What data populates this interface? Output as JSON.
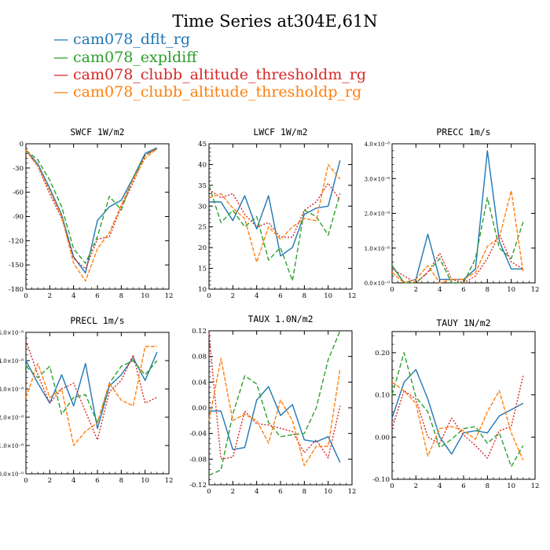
{
  "title": "Time Series at304E,61N",
  "legend": [
    {
      "label": "— cam078_dflt_rg",
      "color": "#1f77b4"
    },
    {
      "label": "— cam078_expldiff",
      "color": "#2ca02c"
    },
    {
      "label": "— cam078_clubb_altitude_thresholdm_rg",
      "color": "#d62728"
    },
    {
      "label": "— cam078_clubb_altitude_thresholdp_rg",
      "color": "#ff7f0e"
    }
  ],
  "chart_data": [
    {
      "type": "line",
      "title": "SWCF   1W/m2",
      "x": [
        0,
        1,
        2,
        3,
        4,
        5,
        6,
        7,
        8,
        9,
        10,
        11
      ],
      "xlim": [
        0,
        12
      ],
      "xticks": [
        0,
        2,
        4,
        6,
        8,
        10,
        12
      ],
      "ylim": [
        -180,
        0
      ],
      "yticks": [
        -180,
        -150,
        -120,
        -90,
        -60,
        -30,
        0
      ],
      "ytick_labels": [
        "-180",
        "-150",
        "-120",
        "-90",
        "-60",
        "-30",
        "0"
      ],
      "series": [
        {
          "name": "cam078_dflt_rg",
          "values": [
            -8,
            -25,
            -55,
            -88,
            -140,
            -160,
            -95,
            -78,
            -70,
            -42,
            -12,
            -5
          ]
        },
        {
          "name": "cam078_expldiff",
          "values": [
            -8,
            -20,
            -45,
            -78,
            -130,
            -148,
            -115,
            -65,
            -82,
            -42,
            -14,
            -6
          ]
        },
        {
          "name": "cam078_clubb_altitude_thresholdm_rg",
          "values": [
            -8,
            -28,
            -62,
            -92,
            -142,
            -155,
            -118,
            -115,
            -78,
            -48,
            -14,
            -6
          ]
        },
        {
          "name": "cam078_clubb_altitude_thresholdp_rg",
          "values": [
            -8,
            -28,
            -58,
            -90,
            -148,
            -170,
            -130,
            -110,
            -76,
            -44,
            -18,
            -6
          ]
        }
      ]
    },
    {
      "type": "line",
      "title": "LWCF   1W/m2",
      "x": [
        0,
        1,
        2,
        3,
        4,
        5,
        6,
        7,
        8,
        9,
        10,
        11
      ],
      "xlim": [
        0,
        12
      ],
      "xticks": [
        0,
        2,
        4,
        6,
        8,
        10,
        12
      ],
      "ylim": [
        10,
        45
      ],
      "yticks": [
        10,
        15,
        20,
        25,
        30,
        35,
        40,
        45
      ],
      "ytick_labels": [
        "10",
        "15",
        "20",
        "25",
        "30",
        "35",
        "40",
        "45"
      ],
      "series": [
        {
          "name": "cam078_dflt_rg",
          "values": [
            31,
            31,
            26.5,
            32.5,
            24.5,
            32.5,
            18,
            20,
            28,
            29.5,
            30,
            41
          ]
        },
        {
          "name": "cam078_expldiff",
          "values": [
            35,
            26,
            29,
            25,
            27.5,
            17,
            20,
            12,
            29,
            27.5,
            23,
            33
          ]
        },
        {
          "name": "cam078_clubb_altitude_thresholdm_rg",
          "values": [
            34,
            32,
            33,
            28,
            25,
            26,
            22.5,
            22.5,
            29,
            31,
            35.5,
            31.5
          ]
        },
        {
          "name": "cam078_clubb_altitude_thresholdp_rg",
          "values": [
            32,
            33,
            29.5,
            27,
            16.5,
            25,
            22,
            25,
            27,
            26.5,
            40,
            36.5
          ]
        }
      ]
    },
    {
      "type": "line",
      "title": "PRECC   1m/s",
      "x": [
        0,
        1,
        2,
        3,
        4,
        5,
        6,
        7,
        8,
        9,
        10,
        11
      ],
      "xlim": [
        0,
        12
      ],
      "xticks": [
        0,
        2,
        4,
        6,
        8,
        10,
        12
      ],
      "ylim": [
        0,
        4e-08
      ],
      "yticks": [
        0,
        1e-08,
        2e-08,
        3e-08,
        4e-08
      ],
      "ytick_labels": [
        "0.0×10⁻⁰",
        "1.0×10⁻⁸",
        "2.0×10⁻⁸",
        "3.0×10⁻⁸",
        "4.0×10⁻⁸"
      ],
      "series": [
        {
          "name": "cam078_dflt_rg",
          "values": [
            5e-09,
            0,
            1e-09,
            1.4e-08,
            1e-09,
            1e-09,
            1e-09,
            4e-09,
            3.8e-08,
            1.2e-08,
            4e-09,
            4e-09
          ]
        },
        {
          "name": "cam078_expldiff",
          "values": [
            5e-09,
            0,
            0,
            3e-09,
            7e-09,
            0,
            0,
            7e-09,
            2.45e-08,
            1e-08,
            7e-09,
            1.75e-08
          ]
        },
        {
          "name": "cam078_clubb_altitude_thresholdm_rg",
          "values": [
            4e-09,
            2e-09,
            0,
            3e-09,
            8.5e-09,
            1e-09,
            0,
            2e-09,
            7e-09,
            1.4e-08,
            6e-09,
            4e-09
          ]
        },
        {
          "name": "cam078_clubb_altitude_thresholdp_rg",
          "values": [
            3e-09,
            0,
            1e-09,
            5e-09,
            0,
            1e-09,
            1e-09,
            3e-09,
            1.05e-08,
            1.3e-08,
            2.65e-08,
            3e-09
          ]
        }
      ]
    },
    {
      "type": "line",
      "title": "PRECL   1m/s",
      "x": [
        0,
        1,
        2,
        3,
        4,
        5,
        6,
        7,
        8,
        9,
        10,
        11
      ],
      "xlim": [
        0,
        12
      ],
      "xticks": [
        0,
        2,
        4,
        6,
        8,
        10,
        12
      ],
      "ylim": [
        0,
        5e-08
      ],
      "yticks": [
        0,
        1e-08,
        2e-08,
        3e-08,
        4e-08,
        5e-08
      ],
      "ytick_labels": [
        "0.0×10⁻⁰",
        "1.0×10⁻⁸",
        "2.0×10⁻⁸",
        "3.0×10⁻⁸",
        "4.0×10⁻⁸",
        "5.0×10⁻⁸"
      ],
      "series": [
        {
          "name": "cam078_dflt_rg",
          "values": [
            4e-08,
            3.2e-08,
            2.5e-08,
            3.5e-08,
            2.4e-08,
            3.9e-08,
            1.6e-08,
            3.1e-08,
            3.5e-08,
            4.1e-08,
            3.3e-08,
            4.3e-08
          ]
        },
        {
          "name": "cam078_expldiff",
          "values": [
            3.8e-08,
            3.4e-08,
            3.8e-08,
            2.1e-08,
            2.7e-08,
            2.8e-08,
            1.8e-08,
            3.2e-08,
            3.8e-08,
            4e-08,
            3.5e-08,
            4e-08
          ]
        },
        {
          "name": "cam078_clubb_altitude_thresholdm_rg",
          "values": [
            4.7e-08,
            3.5e-08,
            2.5e-08,
            3e-08,
            3.2e-08,
            2.2e-08,
            1.2e-08,
            2.9e-08,
            3.3e-08,
            4.2e-08,
            2.5e-08,
            2.7e-08
          ]
        },
        {
          "name": "cam078_clubb_altitude_thresholdp_rg",
          "values": [
            2.7e-08,
            3.9e-08,
            2.7e-08,
            3e-08,
            1e-08,
            1.5e-08,
            1.8e-08,
            3.2e-08,
            2.6e-08,
            2.4e-08,
            4.5e-08,
            4.5e-08
          ]
        }
      ]
    },
    {
      "type": "line",
      "title": "TAUX   1.0N/m2",
      "x": [
        0,
        1,
        2,
        3,
        4,
        5,
        6,
        7,
        8,
        9,
        10,
        11
      ],
      "xlim": [
        0,
        12
      ],
      "xticks": [
        0,
        2,
        4,
        6,
        8,
        10,
        12
      ],
      "ylim": [
        -0.12,
        0.12
      ],
      "yticks": [
        -0.12,
        -0.08,
        -0.04,
        0,
        0.04,
        0.08,
        0.12
      ],
      "ytick_labels": [
        "-0.12",
        "-0.08",
        "-0.04",
        "0.00",
        "0.04",
        "0.08",
        "0.12"
      ],
      "series": [
        {
          "name": "cam078_dflt_rg",
          "values": [
            -0.005,
            -0.005,
            -0.065,
            -0.062,
            0.012,
            0.033,
            -0.012,
            0.005,
            -0.05,
            -0.053,
            -0.045,
            -0.085
          ]
        },
        {
          "name": "cam078_expldiff",
          "values": [
            -0.105,
            -0.097,
            -0.01,
            0.05,
            0.037,
            -0.023,
            -0.045,
            -0.042,
            -0.04,
            0.0,
            0.075,
            0.12
          ]
        },
        {
          "name": "cam078_clubb_altitude_thresholdm_rg",
          "values": [
            0.115,
            -0.08,
            -0.077,
            -0.005,
            -0.025,
            -0.027,
            -0.032,
            -0.037,
            -0.07,
            -0.05,
            -0.078,
            0.003
          ]
        },
        {
          "name": "cam078_clubb_altitude_thresholdp_rg",
          "values": [
            -0.02,
            0.077,
            -0.02,
            -0.01,
            -0.02,
            -0.055,
            0.012,
            -0.02,
            -0.09,
            -0.06,
            -0.06,
            0.06
          ]
        }
      ]
    },
    {
      "type": "line",
      "title": "TAUY   1N/m2",
      "x": [
        0,
        1,
        2,
        3,
        4,
        5,
        6,
        7,
        8,
        9,
        10,
        11
      ],
      "xlim": [
        0,
        12
      ],
      "xticks": [
        0,
        2,
        4,
        6,
        8,
        10,
        12
      ],
      "ylim": [
        -0.1,
        0.25
      ],
      "yticks": [
        -0.1,
        0,
        0.1,
        0.2
      ],
      "ytick_labels": [
        "-0.10",
        "0.00",
        "0.10",
        "0.20"
      ],
      "series": [
        {
          "name": "cam078_dflt_rg",
          "values": [
            0.045,
            0.13,
            0.16,
            0.09,
            0.0,
            -0.04,
            0.01,
            0.015,
            0.01,
            0.05,
            0.065,
            0.08
          ]
        },
        {
          "name": "cam078_expldiff",
          "values": [
            0.1,
            0.2,
            0.095,
            0.06,
            -0.025,
            -0.005,
            0.02,
            0.025,
            -0.015,
            0.01,
            -0.07,
            -0.02
          ]
        },
        {
          "name": "cam078_clubb_altitude_thresholdm_rg",
          "values": [
            0.02,
            0.11,
            0.09,
            0.0,
            -0.015,
            0.045,
            0.005,
            -0.02,
            -0.05,
            0.015,
            0.025,
            0.145
          ]
        },
        {
          "name": "cam078_clubb_altitude_thresholdp_rg",
          "values": [
            0.13,
            0.11,
            0.08,
            -0.045,
            0.02,
            0.025,
            0.015,
            -0.005,
            0.06,
            0.11,
            0.01,
            -0.055
          ]
        }
      ]
    }
  ]
}
